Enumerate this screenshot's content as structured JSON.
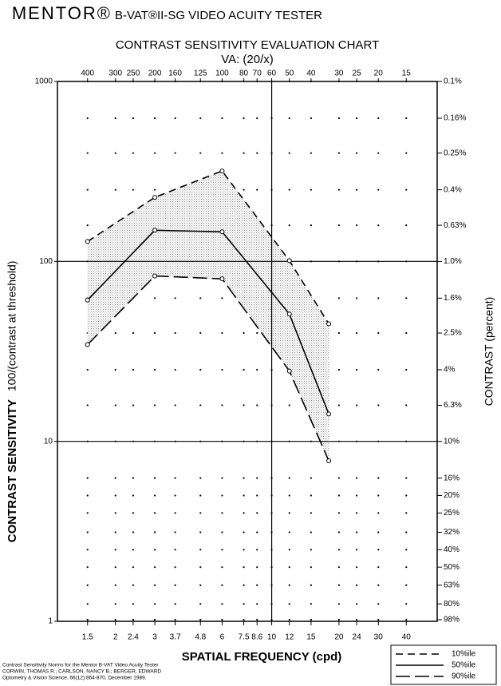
{
  "chart_data": {
    "type": "line",
    "brand": "MENTOR®",
    "header": "B-VAT®II-SG VIDEO ACUITY TESTER",
    "title": "CONTRAST SENSITIVITY EVALUATION CHART",
    "subtitle": "VA: (20/x)",
    "y_label": "CONTRAST SENSITIVITY",
    "y_label_detail": "100/(contrast at threshold)",
    "y2_label": "CONTRAST (percent)",
    "x_label": "SPATIAL FREQUENCY (cpd)",
    "log_x": true,
    "log_y": true,
    "xlim": [
      1.1,
      55
    ],
    "ylim": [
      1,
      1000
    ],
    "y2lim": [
      100,
      0.1
    ],
    "xticks": [
      1.5,
      2,
      2.4,
      3,
      3.7,
      4.8,
      6,
      7.5,
      8.6,
      10,
      12,
      15,
      20,
      24,
      30,
      40
    ],
    "x2ticks": [
      {
        "value": 1.5,
        "label": "400"
      },
      {
        "value": 2,
        "label": "300"
      },
      {
        "value": 2.4,
        "label": "250"
      },
      {
        "value": 3,
        "label": "200"
      },
      {
        "value": 3.7,
        "label": "160"
      },
      {
        "value": 4.8,
        "label": "125"
      },
      {
        "value": 6,
        "label": "100"
      },
      {
        "value": 7.5,
        "label": "80"
      },
      {
        "value": 8.6,
        "label": "70"
      },
      {
        "value": 10,
        "label": "60"
      },
      {
        "value": 12,
        "label": "50"
      },
      {
        "value": 15,
        "label": "40"
      },
      {
        "value": 20,
        "label": "30"
      },
      {
        "value": 24,
        "label": "25"
      },
      {
        "value": 30,
        "label": "20"
      },
      {
        "value": 40,
        "label": "15"
      }
    ],
    "yticks": [
      1,
      10,
      100,
      1000
    ],
    "y2ticks": [
      {
        "value": 0.1,
        "label": "0.1%"
      },
      {
        "value": 0.16,
        "label": "0.16%"
      },
      {
        "value": 0.25,
        "label": "0.25%"
      },
      {
        "value": 0.4,
        "label": "0.4%"
      },
      {
        "value": 0.63,
        "label": "0.63%"
      },
      {
        "value": 1,
        "label": "1.0%"
      },
      {
        "value": 1.6,
        "label": "1.6%"
      },
      {
        "value": 2.5,
        "label": "2.5%"
      },
      {
        "value": 4,
        "label": "4%"
      },
      {
        "value": 6.3,
        "label": "6.3%"
      },
      {
        "value": 10,
        "label": "10%"
      },
      {
        "value": 16,
        "label": "16%"
      },
      {
        "value": 20,
        "label": "20%"
      },
      {
        "value": 25,
        "label": "25%"
      },
      {
        "value": 32,
        "label": "32%"
      },
      {
        "value": 40,
        "label": "40%"
      },
      {
        "value": 50,
        "label": "50%"
      },
      {
        "value": 63,
        "label": "63%"
      },
      {
        "value": 80,
        "label": "80%"
      },
      {
        "value": 98,
        "label": "98%"
      }
    ],
    "x_reference_line": 10,
    "grid": true,
    "x": [
      1.5,
      3,
      6,
      12,
      18
    ],
    "series": [
      {
        "name": "10%ile",
        "color": "#000000",
        "dash": "dashed",
        "values": [
          129,
          227,
          318,
          101,
          45
        ]
      },
      {
        "name": "50%ile",
        "color": "#000000",
        "dash": "solid",
        "values": [
          61,
          149,
          146,
          51,
          14.2
        ]
      },
      {
        "name": "90%ile",
        "color": "#000000",
        "dash": "long-dash",
        "values": [
          34.5,
          83,
          80,
          24.6,
          7.8
        ]
      }
    ],
    "legend": "bottom-right",
    "citation": [
      "Contrast Sensitivity Norms for the Mentor B-VAT Video Acuity Tester",
      "CORWIN, THOMAS R.; CARLSON, NANCY B.; BERGER, EDWARD",
      "Optometry & Vision Science. 66(12):864-870, December 1989."
    ]
  }
}
